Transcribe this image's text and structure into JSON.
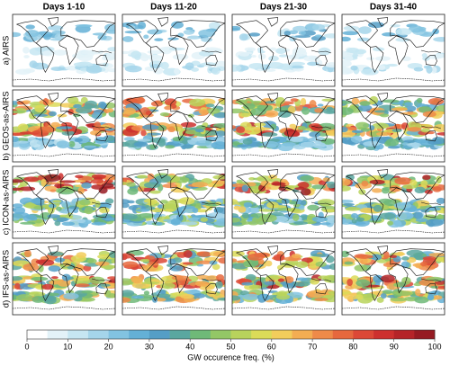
{
  "figure": {
    "columns": [
      "Days 1-10",
      "Days 11-20",
      "Days 21-30",
      "Days 31-40"
    ],
    "rows": [
      "a) AIRS",
      "b) GEOS-as-AIRS",
      "c) ICON-as-AIRS",
      "d) IFS-as-AIRS"
    ]
  },
  "colorbar": {
    "colors": [
      "#ffffff",
      "#e3f2f8",
      "#c6e6f2",
      "#a5d5ea",
      "#82c3e1",
      "#64b0d6",
      "#559ec6",
      "#5aa7a0",
      "#6fb978",
      "#93c766",
      "#b8d35c",
      "#dbdb58",
      "#f2cd5b",
      "#f3ad52",
      "#ee8a49",
      "#e6683e",
      "#dc4836",
      "#cd302e",
      "#b52428",
      "#961b22"
    ],
    "lim": [
      0,
      100
    ],
    "ticks": [
      0,
      10,
      20,
      30,
      40,
      50,
      60,
      70,
      80,
      90,
      100
    ],
    "label": "GW occurence freq. (%)"
  }
}
